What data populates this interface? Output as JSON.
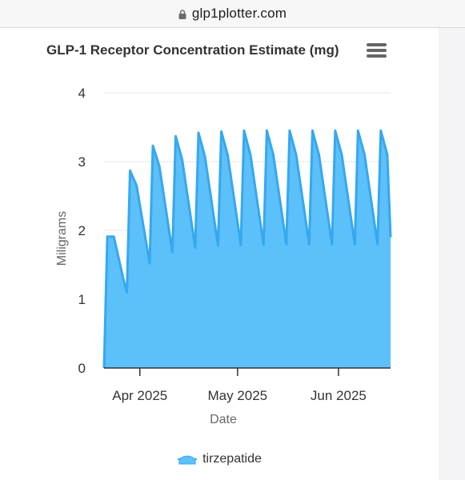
{
  "browser": {
    "host": "glp1plotter.com",
    "lock_icon": "lock-icon"
  },
  "chart": {
    "menu_icon": "hamburger-menu-icon",
    "colors": {
      "line": "#36a8ef",
      "fill": "#5cc0fb",
      "grid": "#e6e6e6",
      "axis": "#333333",
      "text": "#666666"
    }
  },
  "chart_data": {
    "type": "area",
    "title": "GLP-1 Receptor Concentration Estimate (mg)",
    "xlabel": "Date",
    "ylabel": "Miligrams",
    "ylim": [
      0,
      4
    ],
    "yticks": [
      0,
      1,
      2,
      3,
      4
    ],
    "xlim": [
      "2025-03-21",
      "2025-06-17"
    ],
    "xticks": [
      {
        "label": "Apr 2025",
        "date": "2025-04-01"
      },
      {
        "label": "May 2025",
        "date": "2025-05-01"
      },
      {
        "label": "Jun 2025",
        "date": "2025-06-01"
      }
    ],
    "grid": true,
    "legend": "bottom",
    "series": [
      {
        "name": "tirzepatide",
        "points": [
          [
            "2025-03-21",
            0.0
          ],
          [
            "2025-03-22",
            1.91
          ],
          [
            "2025-03-24",
            1.91
          ],
          [
            "2025-03-25",
            1.7
          ],
          [
            "2025-03-27",
            1.28
          ],
          [
            "2025-03-28",
            1.1
          ],
          [
            "2025-03-29",
            2.87
          ],
          [
            "2025-03-31",
            2.65
          ],
          [
            "2025-04-04",
            1.52
          ],
          [
            "2025-04-05",
            3.23
          ],
          [
            "2025-04-07",
            2.93
          ],
          [
            "2025-04-11",
            1.68
          ],
          [
            "2025-04-12",
            3.37
          ],
          [
            "2025-04-14",
            3.03
          ],
          [
            "2025-04-18",
            1.75
          ],
          [
            "2025-04-19",
            3.42
          ],
          [
            "2025-04-21",
            3.07
          ],
          [
            "2025-04-25",
            1.78
          ],
          [
            "2025-04-26",
            3.44
          ],
          [
            "2025-04-28",
            3.09
          ],
          [
            "2025-05-02",
            1.79
          ],
          [
            "2025-05-03",
            3.45
          ],
          [
            "2025-05-05",
            3.09
          ],
          [
            "2025-05-09",
            1.79
          ],
          [
            "2025-05-10",
            3.45
          ],
          [
            "2025-05-12",
            3.1
          ],
          [
            "2025-05-16",
            1.8
          ],
          [
            "2025-05-17",
            3.45
          ],
          [
            "2025-05-19",
            3.1
          ],
          [
            "2025-05-23",
            1.8
          ],
          [
            "2025-05-24",
            3.45
          ],
          [
            "2025-05-26",
            3.1
          ],
          [
            "2025-05-30",
            1.8
          ],
          [
            "2025-05-31",
            3.45
          ],
          [
            "2025-06-02",
            3.1
          ],
          [
            "2025-06-06",
            1.8
          ],
          [
            "2025-06-07",
            3.45
          ],
          [
            "2025-06-09",
            3.1
          ],
          [
            "2025-06-13",
            1.8
          ],
          [
            "2025-06-14",
            3.45
          ],
          [
            "2025-06-16",
            3.1
          ],
          [
            "2025-06-17",
            1.9
          ]
        ]
      }
    ]
  }
}
